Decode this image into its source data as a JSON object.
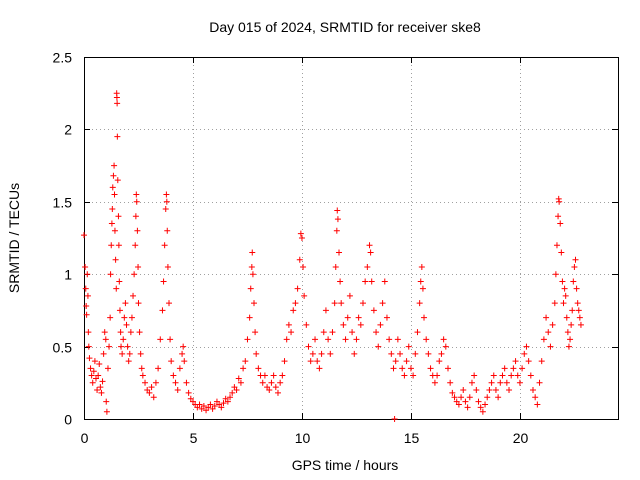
{
  "chart_data": {
    "type": "scatter",
    "title": "Day 015 of 2024, SRMTID for receiver ske8",
    "xlabel": "GPS time / hours",
    "ylabel": "SRMTID / TECUs",
    "xlim": [
      0,
      24.5
    ],
    "ylim": [
      0,
      2.5
    ],
    "xticks": [
      0,
      5,
      10,
      15,
      20
    ],
    "xtick_labels": [
      "0",
      "5",
      "10",
      "15",
      "20"
    ],
    "yticks": [
      0,
      0.5,
      1,
      1.5,
      2,
      2.5
    ],
    "ytick_labels": [
      "0",
      "0.5",
      "1",
      "1.5",
      "2",
      "2.5"
    ],
    "grid": true,
    "marker": "+",
    "color": "#ff0000",
    "series": [
      {
        "name": "SRMTID",
        "points": [
          [
            0.0,
            1.27
          ],
          [
            0.05,
            1.05
          ],
          [
            0.08,
            0.9
          ],
          [
            0.1,
            0.78
          ],
          [
            0.12,
            0.72
          ],
          [
            0.15,
            1.0
          ],
          [
            0.18,
            0.85
          ],
          [
            0.2,
            0.6
          ],
          [
            0.22,
            0.5
          ],
          [
            0.25,
            0.42
          ],
          [
            0.3,
            0.35
          ],
          [
            0.35,
            0.3
          ],
          [
            0.4,
            0.25
          ],
          [
            0.45,
            0.33
          ],
          [
            0.5,
            0.4
          ],
          [
            0.55,
            0.28
          ],
          [
            0.6,
            0.2
          ],
          [
            0.65,
            0.3
          ],
          [
            0.7,
            0.38
          ],
          [
            0.75,
            0.22
          ],
          [
            0.8,
            0.18
          ],
          [
            0.85,
            0.26
          ],
          [
            0.9,
            0.45
          ],
          [
            0.95,
            0.6
          ],
          [
            1.0,
            0.55
          ],
          [
            1.02,
            0.12
          ],
          [
            1.05,
            0.05
          ],
          [
            1.1,
            0.35
          ],
          [
            1.15,
            0.5
          ],
          [
            1.2,
            0.7
          ],
          [
            1.22,
            1.0
          ],
          [
            1.25,
            1.2
          ],
          [
            1.28,
            1.35
          ],
          [
            1.3,
            1.45
          ],
          [
            1.32,
            1.6
          ],
          [
            1.35,
            1.68
          ],
          [
            1.38,
            1.75
          ],
          [
            1.4,
            1.55
          ],
          [
            1.42,
            1.3
          ],
          [
            1.45,
            1.1
          ],
          [
            1.48,
            0.9
          ],
          [
            1.5,
            2.25
          ],
          [
            1.51,
            2.22
          ],
          [
            1.52,
            2.18
          ],
          [
            1.53,
            1.95
          ],
          [
            1.55,
            1.65
          ],
          [
            1.58,
            1.4
          ],
          [
            1.6,
            1.2
          ],
          [
            1.62,
            0.95
          ],
          [
            1.65,
            0.75
          ],
          [
            1.68,
            0.6
          ],
          [
            1.7,
            0.5
          ],
          [
            1.75,
            0.45
          ],
          [
            1.8,
            0.55
          ],
          [
            1.85,
            0.7
          ],
          [
            1.9,
            0.8
          ],
          [
            1.95,
            0.65
          ],
          [
            2.0,
            0.5
          ],
          [
            2.05,
            0.4
          ],
          [
            2.1,
            0.45
          ],
          [
            2.15,
            0.6
          ],
          [
            2.2,
            0.7
          ],
          [
            2.25,
            0.85
          ],
          [
            2.3,
            1.0
          ],
          [
            2.35,
            1.2
          ],
          [
            2.38,
            1.4
          ],
          [
            2.4,
            1.55
          ],
          [
            2.42,
            1.5
          ],
          [
            2.45,
            1.3
          ],
          [
            2.48,
            1.05
          ],
          [
            2.5,
            0.8
          ],
          [
            2.55,
            0.6
          ],
          [
            2.6,
            0.45
          ],
          [
            2.65,
            0.35
          ],
          [
            2.7,
            0.3
          ],
          [
            2.8,
            0.25
          ],
          [
            2.9,
            0.2
          ],
          [
            3.0,
            0.18
          ],
          [
            3.1,
            0.22
          ],
          [
            3.2,
            0.15
          ],
          [
            3.3,
            0.25
          ],
          [
            3.4,
            0.35
          ],
          [
            3.5,
            0.55
          ],
          [
            3.6,
            0.75
          ],
          [
            3.65,
            0.95
          ],
          [
            3.7,
            1.2
          ],
          [
            3.75,
            1.45
          ],
          [
            3.78,
            1.55
          ],
          [
            3.8,
            1.5
          ],
          [
            3.82,
            1.3
          ],
          [
            3.85,
            1.05
          ],
          [
            3.9,
            0.8
          ],
          [
            3.95,
            0.55
          ],
          [
            4.0,
            0.4
          ],
          [
            4.1,
            0.3
          ],
          [
            4.2,
            0.25
          ],
          [
            4.3,
            0.2
          ],
          [
            4.4,
            0.35
          ],
          [
            4.5,
            0.45
          ],
          [
            4.55,
            0.5
          ],
          [
            4.6,
            0.4
          ],
          [
            4.7,
            0.25
          ],
          [
            4.8,
            0.18
          ],
          [
            4.9,
            0.14
          ],
          [
            5.0,
            0.12
          ],
          [
            5.1,
            0.1
          ],
          [
            5.2,
            0.08
          ],
          [
            5.3,
            0.1
          ],
          [
            5.4,
            0.07
          ],
          [
            5.5,
            0.09
          ],
          [
            5.6,
            0.06
          ],
          [
            5.7,
            0.08
          ],
          [
            5.8,
            0.1
          ],
          [
            5.9,
            0.07
          ],
          [
            6.0,
            0.09
          ],
          [
            6.1,
            0.12
          ],
          [
            6.2,
            0.1
          ],
          [
            6.3,
            0.08
          ],
          [
            6.4,
            0.11
          ],
          [
            6.5,
            0.14
          ],
          [
            6.6,
            0.12
          ],
          [
            6.7,
            0.15
          ],
          [
            6.8,
            0.18
          ],
          [
            6.9,
            0.22
          ],
          [
            7.0,
            0.2
          ],
          [
            7.1,
            0.28
          ],
          [
            7.2,
            0.25
          ],
          [
            7.3,
            0.35
          ],
          [
            7.4,
            0.4
          ],
          [
            7.5,
            0.55
          ],
          [
            7.6,
            0.7
          ],
          [
            7.65,
            0.9
          ],
          [
            7.7,
            1.05
          ],
          [
            7.72,
            1.15
          ],
          [
            7.75,
            1.0
          ],
          [
            7.8,
            0.8
          ],
          [
            7.85,
            0.6
          ],
          [
            7.9,
            0.45
          ],
          [
            8.0,
            0.35
          ],
          [
            8.1,
            0.3
          ],
          [
            8.2,
            0.25
          ],
          [
            8.3,
            0.3
          ],
          [
            8.4,
            0.22
          ],
          [
            8.5,
            0.2
          ],
          [
            8.6,
            0.25
          ],
          [
            8.7,
            0.3
          ],
          [
            8.8,
            0.22
          ],
          [
            8.9,
            0.18
          ],
          [
            9.0,
            0.25
          ],
          [
            9.1,
            0.3
          ],
          [
            9.2,
            0.4
          ],
          [
            9.3,
            0.55
          ],
          [
            9.4,
            0.65
          ],
          [
            9.5,
            0.6
          ],
          [
            9.6,
            0.75
          ],
          [
            9.7,
            0.8
          ],
          [
            9.8,
            0.9
          ],
          [
            9.9,
            1.1
          ],
          [
            9.95,
            1.28
          ],
          [
            10.0,
            1.25
          ],
          [
            10.05,
            1.05
          ],
          [
            10.1,
            0.85
          ],
          [
            10.2,
            0.65
          ],
          [
            10.3,
            0.5
          ],
          [
            10.4,
            0.4
          ],
          [
            10.5,
            0.45
          ],
          [
            10.6,
            0.55
          ],
          [
            10.7,
            0.4
          ],
          [
            10.8,
            0.35
          ],
          [
            10.9,
            0.45
          ],
          [
            11.0,
            0.6
          ],
          [
            11.1,
            0.75
          ],
          [
            11.2,
            0.55
          ],
          [
            11.3,
            0.45
          ],
          [
            11.4,
            0.6
          ],
          [
            11.5,
            0.8
          ],
          [
            11.55,
            1.05
          ],
          [
            11.6,
            1.3
          ],
          [
            11.62,
            1.44
          ],
          [
            11.65,
            1.38
          ],
          [
            11.7,
            1.15
          ],
          [
            11.75,
            0.95
          ],
          [
            11.8,
            0.8
          ],
          [
            11.9,
            0.65
          ],
          [
            12.0,
            0.55
          ],
          [
            12.1,
            0.7
          ],
          [
            12.2,
            0.85
          ],
          [
            12.3,
            0.6
          ],
          [
            12.4,
            0.45
          ],
          [
            12.5,
            0.55
          ],
          [
            12.6,
            0.7
          ],
          [
            12.7,
            0.65
          ],
          [
            12.8,
            0.8
          ],
          [
            12.9,
            0.95
          ],
          [
            13.0,
            1.05
          ],
          [
            13.1,
            1.2
          ],
          [
            13.15,
            1.15
          ],
          [
            13.2,
            0.95
          ],
          [
            13.3,
            0.75
          ],
          [
            13.4,
            0.6
          ],
          [
            13.5,
            0.5
          ],
          [
            13.6,
            0.65
          ],
          [
            13.7,
            0.8
          ],
          [
            13.8,
            0.95
          ],
          [
            13.9,
            0.7
          ],
          [
            14.0,
            0.55
          ],
          [
            14.1,
            0.45
          ],
          [
            14.2,
            0.35
          ],
          [
            14.25,
            0.0
          ],
          [
            14.3,
            0.4
          ],
          [
            14.4,
            0.55
          ],
          [
            14.5,
            0.45
          ],
          [
            14.6,
            0.35
          ],
          [
            14.7,
            0.3
          ],
          [
            14.8,
            0.4
          ],
          [
            14.9,
            0.5
          ],
          [
            15.0,
            0.35
          ],
          [
            15.1,
            0.3
          ],
          [
            15.2,
            0.45
          ],
          [
            15.3,
            0.6
          ],
          [
            15.4,
            0.8
          ],
          [
            15.45,
            0.95
          ],
          [
            15.5,
            1.05
          ],
          [
            15.55,
            0.9
          ],
          [
            15.6,
            0.7
          ],
          [
            15.7,
            0.55
          ],
          [
            15.8,
            0.45
          ],
          [
            15.9,
            0.35
          ],
          [
            16.0,
            0.3
          ],
          [
            16.1,
            0.25
          ],
          [
            16.2,
            0.3
          ],
          [
            16.3,
            0.4
          ],
          [
            16.4,
            0.45
          ],
          [
            16.5,
            0.55
          ],
          [
            16.6,
            0.5
          ],
          [
            16.7,
            0.35
          ],
          [
            16.8,
            0.25
          ],
          [
            16.9,
            0.18
          ],
          [
            17.0,
            0.15
          ],
          [
            17.1,
            0.12
          ],
          [
            17.2,
            0.1
          ],
          [
            17.3,
            0.15
          ],
          [
            17.4,
            0.2
          ],
          [
            17.5,
            0.12
          ],
          [
            17.6,
            0.08
          ],
          [
            17.7,
            0.15
          ],
          [
            17.8,
            0.25
          ],
          [
            17.9,
            0.3
          ],
          [
            18.0,
            0.2
          ],
          [
            18.1,
            0.12
          ],
          [
            18.2,
            0.08
          ],
          [
            18.3,
            0.05
          ],
          [
            18.4,
            0.1
          ],
          [
            18.5,
            0.15
          ],
          [
            18.6,
            0.2
          ],
          [
            18.7,
            0.25
          ],
          [
            18.8,
            0.3
          ],
          [
            18.9,
            0.2
          ],
          [
            19.0,
            0.15
          ],
          [
            19.1,
            0.25
          ],
          [
            19.2,
            0.3
          ],
          [
            19.3,
            0.35
          ],
          [
            19.4,
            0.25
          ],
          [
            19.5,
            0.2
          ],
          [
            19.6,
            0.3
          ],
          [
            19.7,
            0.35
          ],
          [
            19.8,
            0.4
          ],
          [
            19.9,
            0.3
          ],
          [
            20.0,
            0.25
          ],
          [
            20.1,
            0.35
          ],
          [
            20.2,
            0.45
          ],
          [
            20.3,
            0.5
          ],
          [
            20.4,
            0.4
          ],
          [
            20.5,
            0.3
          ],
          [
            20.6,
            0.2
          ],
          [
            20.7,
            0.15
          ],
          [
            20.8,
            0.1
          ],
          [
            20.9,
            0.25
          ],
          [
            21.0,
            0.4
          ],
          [
            21.1,
            0.55
          ],
          [
            21.2,
            0.7
          ],
          [
            21.3,
            0.6
          ],
          [
            21.4,
            0.5
          ],
          [
            21.5,
            0.65
          ],
          [
            21.6,
            0.8
          ],
          [
            21.65,
            1.0
          ],
          [
            21.7,
            1.2
          ],
          [
            21.75,
            1.4
          ],
          [
            21.78,
            1.52
          ],
          [
            21.8,
            1.5
          ],
          [
            21.85,
            1.35
          ],
          [
            21.9,
            1.15
          ],
          [
            21.95,
            0.95
          ],
          [
            22.0,
            0.8
          ],
          [
            22.05,
            0.9
          ],
          [
            22.1,
            0.85
          ],
          [
            22.15,
            0.7
          ],
          [
            22.2,
            0.6
          ],
          [
            22.25,
            0.5
          ],
          [
            22.3,
            0.55
          ],
          [
            22.35,
            0.65
          ],
          [
            22.4,
            0.75
          ],
          [
            22.45,
            0.95
          ],
          [
            22.5,
            1.05
          ],
          [
            22.55,
            1.1
          ],
          [
            22.6,
            0.9
          ],
          [
            22.65,
            0.8
          ],
          [
            22.7,
            0.75
          ],
          [
            22.75,
            0.7
          ],
          [
            22.8,
            0.65
          ]
        ]
      }
    ]
  }
}
